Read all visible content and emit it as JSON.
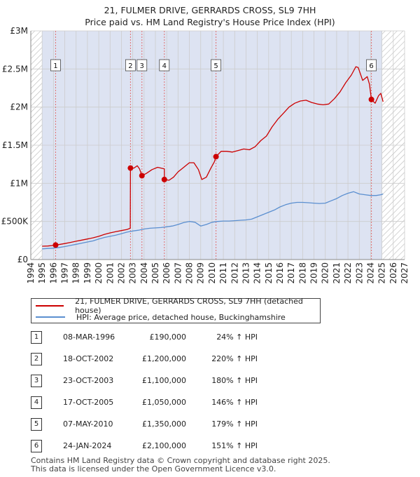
{
  "title_line1": "21, FULMER DRIVE, GERRARDS CROSS, SL9 7HH",
  "title_line2": "Price paid vs. HM Land Registry's House Price Index (HPI)",
  "colors": {
    "price": "#cc0000",
    "hpi": "#5b8fd0",
    "marker_line": "#e07070",
    "grid": "#cccccc",
    "shade": "#dde3f2"
  },
  "chart_data": {
    "type": "line",
    "title": "21, FULMER DRIVE, GERRARDS CROSS, SL9 7HH",
    "subtitle": "Price paid vs. HM Land Registry's House Price Index (HPI)",
    "xlim": [
      1994,
      2027
    ],
    "ylim": [
      0,
      3000000
    ],
    "x_ticks": [
      "1994",
      "1995",
      "1996",
      "1997",
      "1998",
      "1999",
      "2000",
      "2001",
      "2002",
      "2003",
      "2004",
      "2005",
      "2006",
      "2007",
      "2008",
      "2009",
      "2010",
      "2011",
      "2012",
      "2013",
      "2014",
      "2015",
      "2016",
      "2017",
      "2018",
      "2019",
      "2020",
      "2021",
      "2022",
      "2023",
      "2024",
      "2025",
      "2026",
      "2027"
    ],
    "y_ticks": [
      {
        "value": 0,
        "label": "£0"
      },
      {
        "value": 500000,
        "label": "£500K"
      },
      {
        "value": 1000000,
        "label": "£1M"
      },
      {
        "value": 1500000,
        "label": "£1.5M"
      },
      {
        "value": 2000000,
        "label": "£2M"
      },
      {
        "value": 2500000,
        "label": "£2.5M"
      },
      {
        "value": 3000000,
        "label": "£3M"
      }
    ],
    "hatched_ranges": [
      [
        1994,
        1995
      ],
      [
        2025,
        2027
      ]
    ],
    "shaded_range": [
      1995,
      2025
    ],
    "series": [
      {
        "name": "21, FULMER DRIVE, GERRARDS CROSS, SL9 7HH (detached house)",
        "points": [
          [
            1995.0,
            175000
          ],
          [
            1995.5,
            178000
          ],
          [
            1996.0,
            185000
          ],
          [
            1996.19,
            190000
          ],
          [
            1996.6,
            200000
          ],
          [
            1997.0,
            210000
          ],
          [
            1997.5,
            225000
          ],
          [
            1998.0,
            240000
          ],
          [
            1998.5,
            255000
          ],
          [
            1999.0,
            270000
          ],
          [
            1999.5,
            285000
          ],
          [
            2000.0,
            305000
          ],
          [
            2000.5,
            330000
          ],
          [
            2001.0,
            350000
          ],
          [
            2001.5,
            365000
          ],
          [
            2002.0,
            380000
          ],
          [
            2002.5,
            395000
          ],
          [
            2002.78,
            410000
          ],
          [
            2002.8,
            1200000
          ],
          [
            2003.1,
            1200000
          ],
          [
            2003.4,
            1230000
          ],
          [
            2003.6,
            1190000
          ],
          [
            2003.81,
            1100000
          ],
          [
            2004.2,
            1130000
          ],
          [
            2004.7,
            1180000
          ],
          [
            2005.2,
            1210000
          ],
          [
            2005.79,
            1190000
          ],
          [
            2005.8,
            1050000
          ],
          [
            2006.2,
            1040000
          ],
          [
            2006.6,
            1080000
          ],
          [
            2007.0,
            1150000
          ],
          [
            2007.5,
            1210000
          ],
          [
            2008.0,
            1270000
          ],
          [
            2008.4,
            1270000
          ],
          [
            2008.8,
            1180000
          ],
          [
            2009.1,
            1050000
          ],
          [
            2009.5,
            1080000
          ],
          [
            2009.9,
            1200000
          ],
          [
            2010.2,
            1280000
          ],
          [
            2010.35,
            1350000
          ],
          [
            2010.8,
            1420000
          ],
          [
            2011.3,
            1420000
          ],
          [
            2011.8,
            1410000
          ],
          [
            2012.3,
            1430000
          ],
          [
            2012.8,
            1450000
          ],
          [
            2013.3,
            1440000
          ],
          [
            2013.8,
            1480000
          ],
          [
            2014.3,
            1560000
          ],
          [
            2014.8,
            1620000
          ],
          [
            2015.3,
            1740000
          ],
          [
            2015.8,
            1840000
          ],
          [
            2016.3,
            1920000
          ],
          [
            2016.8,
            2000000
          ],
          [
            2017.3,
            2050000
          ],
          [
            2017.8,
            2080000
          ],
          [
            2018.3,
            2090000
          ],
          [
            2018.8,
            2060000
          ],
          [
            2019.3,
            2040000
          ],
          [
            2019.8,
            2030000
          ],
          [
            2020.3,
            2040000
          ],
          [
            2020.8,
            2110000
          ],
          [
            2021.3,
            2200000
          ],
          [
            2021.8,
            2320000
          ],
          [
            2022.3,
            2420000
          ],
          [
            2022.7,
            2530000
          ],
          [
            2022.9,
            2520000
          ],
          [
            2023.3,
            2350000
          ],
          [
            2023.7,
            2400000
          ],
          [
            2023.9,
            2300000
          ],
          [
            2024.07,
            2100000
          ],
          [
            2024.4,
            2050000
          ],
          [
            2024.7,
            2150000
          ],
          [
            2024.9,
            2180000
          ],
          [
            2025.1,
            2070000
          ]
        ]
      },
      {
        "name": "HPI: Average price, detached house, Buckinghamshire",
        "points": [
          [
            1995.0,
            140000
          ],
          [
            1995.5,
            145000
          ],
          [
            1996.0,
            150000
          ],
          [
            1996.5,
            158000
          ],
          [
            1997.0,
            170000
          ],
          [
            1997.5,
            185000
          ],
          [
            1998.0,
            200000
          ],
          [
            1998.5,
            215000
          ],
          [
            1999.0,
            230000
          ],
          [
            1999.5,
            245000
          ],
          [
            2000.0,
            270000
          ],
          [
            2000.5,
            290000
          ],
          [
            2001.0,
            305000
          ],
          [
            2001.5,
            320000
          ],
          [
            2002.0,
            340000
          ],
          [
            2002.5,
            360000
          ],
          [
            2003.0,
            375000
          ],
          [
            2003.5,
            385000
          ],
          [
            2004.0,
            400000
          ],
          [
            2004.5,
            410000
          ],
          [
            2005.0,
            415000
          ],
          [
            2005.5,
            420000
          ],
          [
            2006.0,
            430000
          ],
          [
            2006.5,
            440000
          ],
          [
            2007.0,
            460000
          ],
          [
            2007.5,
            485000
          ],
          [
            2008.0,
            500000
          ],
          [
            2008.5,
            490000
          ],
          [
            2009.0,
            440000
          ],
          [
            2009.5,
            460000
          ],
          [
            2010.0,
            490000
          ],
          [
            2010.5,
            500000
          ],
          [
            2011.0,
            505000
          ],
          [
            2011.5,
            505000
          ],
          [
            2012.0,
            510000
          ],
          [
            2012.5,
            515000
          ],
          [
            2013.0,
            520000
          ],
          [
            2013.5,
            530000
          ],
          [
            2014.0,
            560000
          ],
          [
            2014.5,
            590000
          ],
          [
            2015.0,
            620000
          ],
          [
            2015.5,
            650000
          ],
          [
            2016.0,
            690000
          ],
          [
            2016.5,
            720000
          ],
          [
            2017.0,
            740000
          ],
          [
            2017.5,
            750000
          ],
          [
            2018.0,
            750000
          ],
          [
            2018.5,
            745000
          ],
          [
            2019.0,
            740000
          ],
          [
            2019.5,
            735000
          ],
          [
            2020.0,
            740000
          ],
          [
            2020.5,
            770000
          ],
          [
            2021.0,
            800000
          ],
          [
            2021.5,
            840000
          ],
          [
            2022.0,
            870000
          ],
          [
            2022.5,
            890000
          ],
          [
            2023.0,
            860000
          ],
          [
            2023.5,
            850000
          ],
          [
            2024.0,
            840000
          ],
          [
            2024.5,
            840000
          ],
          [
            2024.9,
            850000
          ],
          [
            2025.1,
            860000
          ]
        ]
      }
    ],
    "markers": [
      {
        "id": "1",
        "x": 1996.19,
        "y": 190000
      },
      {
        "id": "2",
        "x": 2002.8,
        "y": 1200000
      },
      {
        "id": "3",
        "x": 2003.81,
        "y": 1100000
      },
      {
        "id": "4",
        "x": 2005.79,
        "y": 1050000
      },
      {
        "id": "5",
        "x": 2010.35,
        "y": 1350000
      },
      {
        "id": "6",
        "x": 2024.07,
        "y": 2100000
      }
    ]
  },
  "legend": {
    "price_label": "21, FULMER DRIVE, GERRARDS CROSS, SL9 7HH (detached house)",
    "hpi_label": "HPI: Average price, detached house, Buckinghamshire"
  },
  "transactions": [
    {
      "num": "1",
      "date": "08-MAR-1996",
      "price": "£190,000",
      "hpi": "24% ↑ HPI"
    },
    {
      "num": "2",
      "date": "18-OCT-2002",
      "price": "£1,200,000",
      "hpi": "220% ↑ HPI"
    },
    {
      "num": "3",
      "date": "23-OCT-2003",
      "price": "£1,100,000",
      "hpi": "180% ↑ HPI"
    },
    {
      "num": "4",
      "date": "17-OCT-2005",
      "price": "£1,050,000",
      "hpi": "146% ↑ HPI"
    },
    {
      "num": "5",
      "date": "07-MAY-2010",
      "price": "£1,350,000",
      "hpi": "179% ↑ HPI"
    },
    {
      "num": "6",
      "date": "24-JAN-2024",
      "price": "£2,100,000",
      "hpi": "151% ↑ HPI"
    }
  ],
  "footer_line1": "Contains HM Land Registry data © Crown copyright and database right 2025.",
  "footer_line2": "This data is licensed under the Open Government Licence v3.0."
}
